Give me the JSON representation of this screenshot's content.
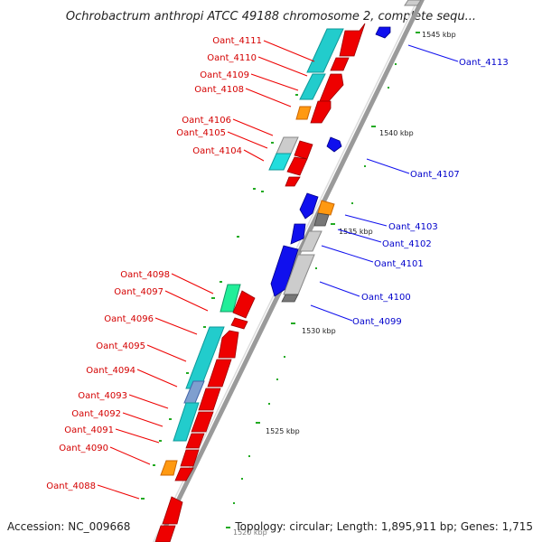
{
  "title": "Ochrobactrum anthropi ATCC 49188 chromosome 2, complete sequ...",
  "footer": {
    "accession": "Accession: NC_009668",
    "topology": "Topology: circular; Length: 1,895,911 bp; Genes: 1,715"
  },
  "colors": {
    "backbone": "#a0a0a0",
    "reverse_label": "#d40000",
    "forward_label": "#0000cc",
    "red": "#ee0000",
    "blue": "#1010ee",
    "cyan": "#22cccc",
    "gray": "#c8c8c8",
    "dark_gray": "#777777",
    "orange": "#ff9911",
    "green": "#22ee99",
    "steel": "#7f9fcf",
    "tick": "#229922"
  },
  "kbp_ticks": [
    "1545 kbp",
    "1540 kbp",
    "1535 kbp",
    "1530 kbp",
    "1525 kbp",
    "1520 kbp"
  ],
  "genes_reverse": [
    {
      "id": "Oant_4111",
      "color": "red"
    },
    {
      "id": "Oant_4110",
      "color": "red"
    },
    {
      "id": "Oant_4109",
      "color": "red"
    },
    {
      "id": "Oant_4108",
      "color": "red"
    },
    {
      "id": "Oant_4106",
      "color": "red"
    },
    {
      "id": "Oant_4105",
      "color": "red"
    },
    {
      "id": "Oant_4104",
      "color": "red"
    },
    {
      "id": "Oant_4098",
      "color": "red"
    },
    {
      "id": "Oant_4097",
      "color": "red"
    },
    {
      "id": "Oant_4096",
      "color": "red"
    },
    {
      "id": "Oant_4095",
      "color": "red"
    },
    {
      "id": "Oant_4094",
      "color": "red"
    },
    {
      "id": "Oant_4093",
      "color": "red"
    },
    {
      "id": "Oant_4092",
      "color": "red"
    },
    {
      "id": "Oant_4091",
      "color": "red"
    },
    {
      "id": "Oant_4090",
      "color": "red"
    },
    {
      "id": "Oant_4088",
      "color": "red"
    }
  ],
  "genes_forward": [
    {
      "id": "Oant_4113",
      "color": "blue"
    },
    {
      "id": "Oant_4107",
      "color": "blue"
    },
    {
      "id": "Oant_4103",
      "color": "blue"
    },
    {
      "id": "Oant_4102",
      "color": "blue"
    },
    {
      "id": "Oant_4101",
      "color": "blue"
    },
    {
      "id": "Oant_4100",
      "color": "blue"
    },
    {
      "id": "Oant_4099",
      "color": "blue"
    }
  ]
}
